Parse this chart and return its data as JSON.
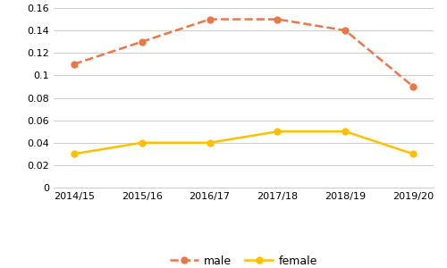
{
  "years": [
    "2014/15",
    "2015/16",
    "2016/17",
    "2017/18",
    "2018/19",
    "2019/20"
  ],
  "male_values": [
    0.11,
    0.13,
    0.15,
    0.15,
    0.14,
    0.09
  ],
  "female_values": [
    0.03,
    0.04,
    0.04,
    0.05,
    0.05,
    0.03
  ],
  "male_color": "#E8784A",
  "female_color": "#FFC000",
  "ylim": [
    0,
    0.16
  ],
  "yticks": [
    0,
    0.02,
    0.04,
    0.06,
    0.08,
    0.1,
    0.12,
    0.14,
    0.16
  ],
  "ytick_labels": [
    "0",
    "0.02",
    "0.04",
    "0.06",
    "0.08",
    "0.1",
    "0.12",
    "0.14",
    "0.16"
  ],
  "male_label": "male",
  "female_label": "female",
  "marker": "o",
  "male_linestyle": "--",
  "female_linestyle": "-",
  "linewidth": 1.8,
  "markersize": 5,
  "background_color": "#ffffff",
  "grid_color": "#cccccc"
}
